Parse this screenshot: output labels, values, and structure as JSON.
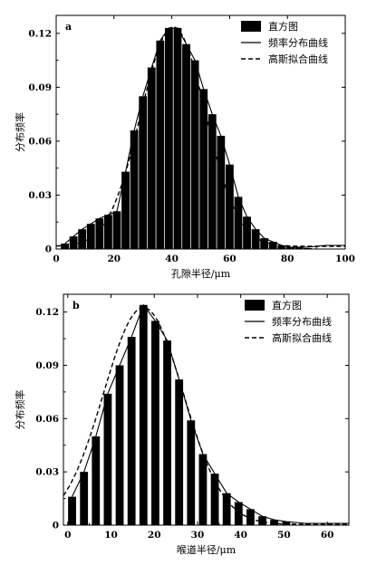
{
  "chart_data": [
    {
      "type": "bar",
      "panel_label": "a",
      "xlabel": "孔隙半径/μm",
      "ylabel": "分布频率",
      "xlim": [
        0,
        100
      ],
      "ylim": [
        0,
        0.13
      ],
      "xticks": [
        0,
        20,
        40,
        60,
        80,
        100
      ],
      "yticks": [
        0,
        0.03,
        0.06,
        0.09,
        0.12
      ],
      "ytick_labels": [
        "0",
        "0.03",
        "0.06",
        "0.09",
        "0.12"
      ],
      "legend_position": "top-right",
      "legend": [
        "直方图",
        "频率分布曲线",
        "高斯拟合曲线"
      ],
      "histogram": {
        "name": "直方图",
        "x": [
          3,
          6,
          9,
          12,
          15,
          18,
          21,
          24,
          27,
          30,
          33,
          36,
          39,
          42,
          45,
          48,
          51,
          54,
          57,
          60,
          63,
          66,
          69,
          72,
          75,
          78,
          81,
          84,
          87
        ],
        "values": [
          0.003,
          0.007,
          0.011,
          0.014,
          0.017,
          0.019,
          0.021,
          0.043,
          0.066,
          0.085,
          0.101,
          0.116,
          0.123,
          0.123,
          0.114,
          0.105,
          0.089,
          0.075,
          0.063,
          0.047,
          0.029,
          0.018,
          0.011,
          0.006,
          0.004,
          0.002,
          0.001,
          0.001,
          0.0005
        ]
      },
      "frequency_curve": {
        "name": "频率分布曲线",
        "x": [
          3,
          6,
          9,
          12,
          15,
          18,
          21,
          24,
          27,
          30,
          33,
          36,
          39,
          42,
          45,
          48,
          51,
          54,
          57,
          60,
          63,
          66,
          69,
          72,
          75,
          78,
          81,
          84,
          87,
          93,
          100
        ],
        "y": [
          0.003,
          0.007,
          0.011,
          0.014,
          0.017,
          0.019,
          0.021,
          0.043,
          0.066,
          0.085,
          0.101,
          0.116,
          0.123,
          0.123,
          0.114,
          0.105,
          0.089,
          0.075,
          0.063,
          0.047,
          0.029,
          0.018,
          0.011,
          0.006,
          0.004,
          0.002,
          0.001,
          0.001,
          0.001,
          0.002,
          0.002
        ]
      },
      "gaussian_fit": {
        "name": "高斯拟合曲线",
        "y0": 0.0015,
        "amplitude": 0.122,
        "center": 40.5,
        "sigma": 11.2
      }
    },
    {
      "type": "bar",
      "panel_label": "b",
      "xlabel": "喉道半径/μm",
      "ylabel": "分布频率",
      "xlim": [
        -1,
        65
      ],
      "ylim": [
        0,
        0.13
      ],
      "xticks": [
        0,
        10,
        20,
        30,
        40,
        50,
        60
      ],
      "yticks": [
        0,
        0.03,
        0.06,
        0.09,
        0.12
      ],
      "ytick_labels": [
        "0",
        "0.03",
        "0.06",
        "0.09",
        "0.12"
      ],
      "legend_position": "top-right",
      "legend": [
        "直方图",
        "频率分布曲线",
        "高斯拟合曲线"
      ],
      "histogram": {
        "name": "直方图",
        "x": [
          1,
          3.75,
          6.5,
          9.25,
          12,
          14.75,
          17.5,
          20.25,
          23,
          25.75,
          28.5,
          31.25,
          34,
          36.75,
          39.5,
          42.25,
          45,
          47.75,
          50.5
        ],
        "values": [
          0.016,
          0.03,
          0.05,
          0.074,
          0.09,
          0.106,
          0.124,
          0.115,
          0.104,
          0.082,
          0.059,
          0.04,
          0.029,
          0.018,
          0.013,
          0.009,
          0.005,
          0.003,
          0.002
        ]
      },
      "frequency_curve": {
        "name": "频率分布曲线",
        "x": [
          1,
          3.75,
          6.5,
          9.25,
          12,
          14.75,
          17.5,
          20.25,
          23,
          25.75,
          28.5,
          31.25,
          34,
          36.75,
          39.5,
          42.25,
          45,
          47.75,
          50.5,
          55,
          60,
          65
        ],
        "y": [
          0.016,
          0.03,
          0.05,
          0.074,
          0.09,
          0.106,
          0.124,
          0.115,
          0.104,
          0.082,
          0.059,
          0.04,
          0.029,
          0.018,
          0.013,
          0.009,
          0.005,
          0.003,
          0.002,
          0.001,
          0.001,
          0.001
        ]
      },
      "gaussian_fit": {
        "name": "高斯拟合曲线",
        "y0": 0.0005,
        "amplitude": 0.122,
        "center": 17.5,
        "sigma": 9.2
      }
    }
  ]
}
